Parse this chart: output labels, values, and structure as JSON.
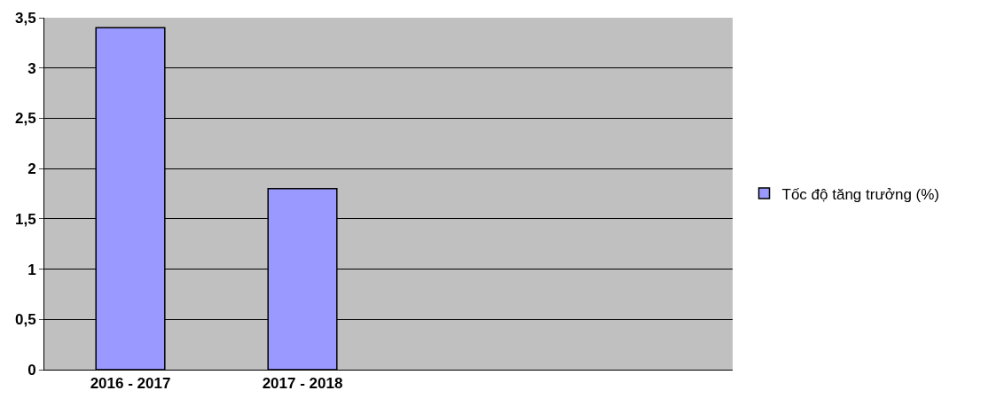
{
  "chart_data": {
    "type": "bar",
    "categories": [
      "2016 - 2017",
      "2017 - 2018",
      null,
      null
    ],
    "series": [
      {
        "name": "Tốc độ tăng trưởng (%)",
        "color": "#9999ff",
        "values": [
          3.4,
          1.8,
          null,
          null
        ]
      }
    ],
    "ylim": [
      0,
      3.5
    ],
    "yticks": [
      0,
      {
        "value": 0.5,
        "label": "0,5"
      },
      1,
      {
        "value": 1.5,
        "label": "1,5"
      },
      2,
      {
        "value": 2.5,
        "label": "2,5"
      },
      3,
      {
        "value": 3.5,
        "label": "3,5"
      }
    ],
    "grid": "y",
    "legend": "right"
  }
}
